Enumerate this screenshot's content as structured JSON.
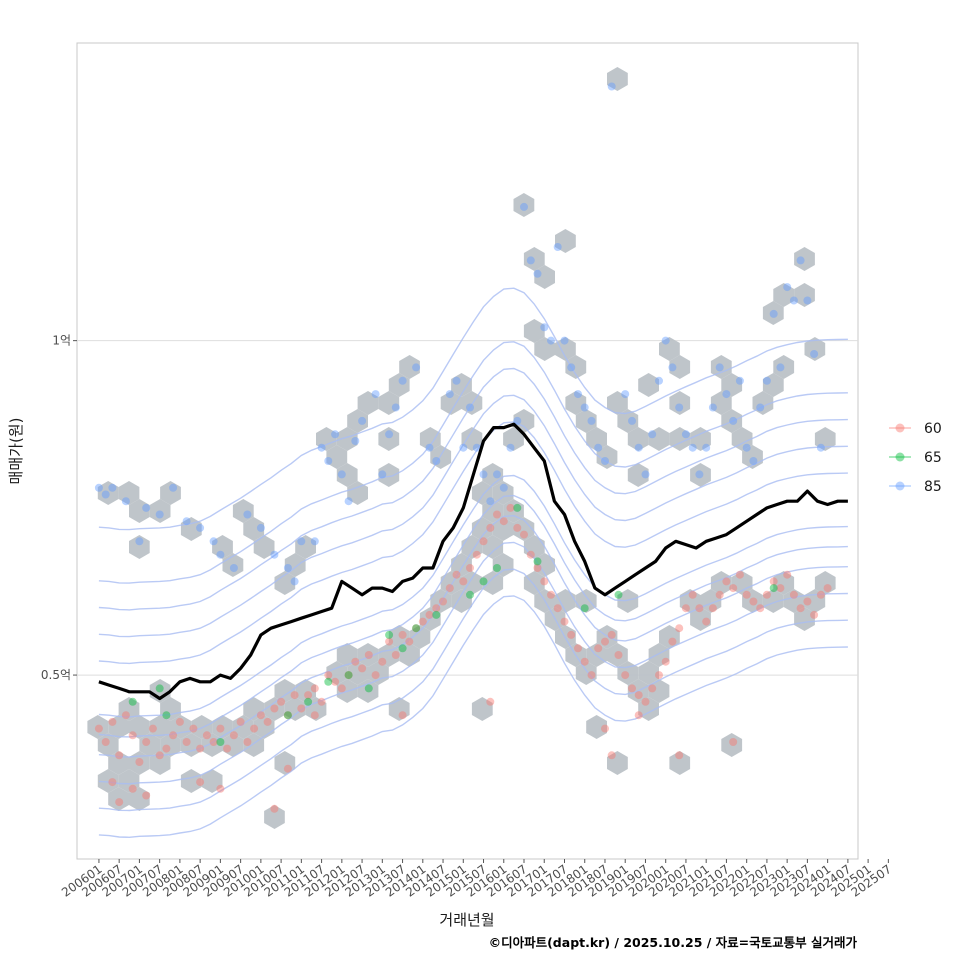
{
  "chart_data": {
    "type": "scatter",
    "title": "",
    "xlabel": "거래년월",
    "ylabel": "매매가(원)",
    "caption": "©디아파트(dapt.kr) / 2025.10.25 / 자료=국토교통부 실거래가",
    "x_unit": "months since 2006-01",
    "xlim": [
      -6.5,
      225
    ],
    "ylim": [
      22500000,
      144500000
    ],
    "x_ticks": [
      "200601",
      "200607",
      "200701",
      "200707",
      "200801",
      "200807",
      "200901",
      "200907",
      "201001",
      "201007",
      "201101",
      "201107",
      "201201",
      "201207",
      "201301",
      "201307",
      "201401",
      "201407",
      "201501",
      "201507",
      "201601",
      "201607",
      "201701",
      "201707",
      "201801",
      "201807",
      "201901",
      "201907",
      "202001",
      "202007",
      "202101",
      "202107",
      "202201",
      "202207",
      "202301",
      "202307",
      "202401",
      "202407",
      "202501",
      "202507"
    ],
    "y_ticks": [
      {
        "value": 50000000,
        "label": "0.5억"
      },
      {
        "value": 100000000,
        "label": "1억"
      }
    ],
    "grid": true,
    "legend_position": "right",
    "legend": [
      {
        "label": "60",
        "color": "#f8766d"
      },
      {
        "label": "65",
        "color": "#00ba38"
      },
      {
        "label": "85",
        "color": "#619cff"
      }
    ],
    "hexbin_color": "#bcc2c7",
    "contour_color": "#a9bdf2",
    "trend_line": {
      "name": "이동평균",
      "color": "#000000",
      "x": [
        0,
        3,
        6,
        9,
        12,
        15,
        18,
        21,
        24,
        27,
        30,
        33,
        36,
        39,
        42,
        45,
        48,
        51,
        54,
        57,
        60,
        63,
        66,
        69,
        72,
        75,
        78,
        81,
        84,
        87,
        90,
        93,
        96,
        99,
        102,
        105,
        108,
        111,
        114,
        117,
        120,
        123,
        126,
        129,
        132,
        135,
        138,
        141,
        144,
        147,
        150,
        153,
        156,
        159,
        162,
        165,
        168,
        171,
        174,
        177,
        180,
        183,
        186,
        189,
        192,
        195,
        198,
        201,
        204,
        207,
        210,
        213,
        216,
        219,
        222
      ],
      "values": [
        49,
        48.5,
        48,
        47.5,
        47.5,
        47.5,
        46.5,
        47.5,
        49,
        49.5,
        49,
        49,
        50,
        49.5,
        51,
        53,
        56,
        57,
        57.5,
        58,
        58.5,
        59,
        59.5,
        60,
        64,
        63,
        62,
        63,
        63,
        62.5,
        64,
        64.5,
        66,
        66,
        70,
        72,
        75,
        80,
        85,
        87,
        87,
        87.5,
        86,
        84,
        82,
        76,
        74,
        70,
        67,
        63,
        62,
        63,
        64,
        65,
        66,
        67,
        69,
        70,
        69.5,
        69,
        70,
        70.5,
        71,
        72,
        73,
        74,
        75,
        75.5,
        76,
        76,
        77.5,
        76,
        75.5,
        76,
        76
      ],
      "value_unit": "백만원"
    },
    "series": [
      {
        "name": "60",
        "color": "#f8766d",
        "value_unit": "백만원",
        "points": [
          [
            0,
            42
          ],
          [
            2,
            40
          ],
          [
            4,
            43
          ],
          [
            6,
            38
          ],
          [
            8,
            44
          ],
          [
            10,
            41
          ],
          [
            12,
            37
          ],
          [
            14,
            40
          ],
          [
            16,
            42
          ],
          [
            18,
            38
          ],
          [
            20,
            39
          ],
          [
            22,
            41
          ],
          [
            24,
            43
          ],
          [
            26,
            40
          ],
          [
            28,
            42
          ],
          [
            30,
            39
          ],
          [
            32,
            41
          ],
          [
            34,
            40
          ],
          [
            36,
            42
          ],
          [
            38,
            39
          ],
          [
            40,
            41
          ],
          [
            42,
            43
          ],
          [
            44,
            40
          ],
          [
            46,
            42
          ],
          [
            48,
            44
          ],
          [
            50,
            43
          ],
          [
            52,
            45
          ],
          [
            54,
            46
          ],
          [
            56,
            44
          ],
          [
            58,
            47
          ],
          [
            60,
            45
          ],
          [
            62,
            47
          ],
          [
            64,
            48
          ],
          [
            66,
            46
          ],
          [
            68,
            50
          ],
          [
            70,
            49
          ],
          [
            72,
            48
          ],
          [
            74,
            50
          ],
          [
            76,
            52
          ],
          [
            78,
            51
          ],
          [
            80,
            53
          ],
          [
            82,
            50
          ],
          [
            84,
            52
          ],
          [
            86,
            55
          ],
          [
            88,
            53
          ],
          [
            90,
            56
          ],
          [
            92,
            55
          ],
          [
            94,
            57
          ],
          [
            96,
            58
          ],
          [
            98,
            59
          ],
          [
            100,
            60
          ],
          [
            102,
            61
          ],
          [
            104,
            63
          ],
          [
            106,
            65
          ],
          [
            108,
            64
          ],
          [
            110,
            66
          ],
          [
            112,
            68
          ],
          [
            114,
            70
          ],
          [
            116,
            72
          ],
          [
            118,
            74
          ],
          [
            120,
            73
          ],
          [
            122,
            75
          ],
          [
            124,
            72
          ],
          [
            126,
            71
          ],
          [
            128,
            68
          ],
          [
            130,
            66
          ],
          [
            132,
            64
          ],
          [
            134,
            62
          ],
          [
            136,
            60
          ],
          [
            138,
            58
          ],
          [
            140,
            56
          ],
          [
            142,
            54
          ],
          [
            144,
            52
          ],
          [
            146,
            50
          ],
          [
            148,
            54
          ],
          [
            150,
            55
          ],
          [
            152,
            56
          ],
          [
            154,
            53
          ],
          [
            156,
            50
          ],
          [
            158,
            48
          ],
          [
            160,
            47
          ],
          [
            162,
            46
          ],
          [
            164,
            48
          ],
          [
            166,
            50
          ],
          [
            168,
            52
          ],
          [
            170,
            55
          ],
          [
            172,
            57
          ],
          [
            174,
            60
          ],
          [
            176,
            62
          ],
          [
            178,
            60
          ],
          [
            180,
            58
          ],
          [
            182,
            60
          ],
          [
            184,
            62
          ],
          [
            186,
            64
          ],
          [
            188,
            63
          ],
          [
            190,
            65
          ],
          [
            192,
            62
          ],
          [
            194,
            61
          ],
          [
            196,
            60
          ],
          [
            198,
            62
          ],
          [
            200,
            64
          ],
          [
            202,
            63
          ],
          [
            204,
            65
          ],
          [
            206,
            62
          ],
          [
            208,
            60
          ],
          [
            210,
            61
          ],
          [
            212,
            59
          ],
          [
            214,
            62
          ],
          [
            216,
            63
          ],
          [
            4,
            34
          ],
          [
            10,
            33
          ],
          [
            30,
            34
          ],
          [
            36,
            33
          ],
          [
            52,
            30
          ],
          [
            56,
            36
          ],
          [
            64,
            44
          ],
          [
            90,
            44
          ],
          [
            116,
            46
          ],
          [
            150,
            42
          ],
          [
            152,
            38
          ],
          [
            160,
            44
          ],
          [
            172,
            38
          ],
          [
            188,
            40
          ],
          [
            6,
            31
          ],
          [
            14,
            32
          ]
        ]
      },
      {
        "name": "65",
        "color": "#00ba38",
        "value_unit": "백만원",
        "points": [
          [
            10,
            46
          ],
          [
            18,
            48
          ],
          [
            20,
            44
          ],
          [
            36,
            40
          ],
          [
            56,
            44
          ],
          [
            62,
            46
          ],
          [
            68,
            49
          ],
          [
            74,
            50
          ],
          [
            80,
            48
          ],
          [
            86,
            56
          ],
          [
            90,
            54
          ],
          [
            94,
            57
          ],
          [
            100,
            59
          ],
          [
            110,
            62
          ],
          [
            114,
            64
          ],
          [
            118,
            66
          ],
          [
            124,
            75
          ],
          [
            130,
            67
          ],
          [
            144,
            60
          ],
          [
            154,
            62
          ],
          [
            200,
            63
          ]
        ]
      },
      {
        "name": "85",
        "color": "#619cff",
        "value_unit": "백만원",
        "points": [
          [
            0,
            78
          ],
          [
            2,
            77
          ],
          [
            4,
            78
          ],
          [
            8,
            76
          ],
          [
            12,
            70
          ],
          [
            14,
            75
          ],
          [
            18,
            74
          ],
          [
            22,
            78
          ],
          [
            26,
            73
          ],
          [
            30,
            72
          ],
          [
            34,
            70
          ],
          [
            36,
            68
          ],
          [
            40,
            66
          ],
          [
            44,
            74
          ],
          [
            48,
            72
          ],
          [
            52,
            68
          ],
          [
            56,
            66
          ],
          [
            58,
            64
          ],
          [
            60,
            70
          ],
          [
            64,
            70
          ],
          [
            66,
            84
          ],
          [
            68,
            82
          ],
          [
            70,
            86
          ],
          [
            72,
            80
          ],
          [
            74,
            76
          ],
          [
            76,
            85
          ],
          [
            78,
            88
          ],
          [
            82,
            92
          ],
          [
            84,
            80
          ],
          [
            86,
            86
          ],
          [
            88,
            90
          ],
          [
            90,
            94
          ],
          [
            94,
            96
          ],
          [
            98,
            84
          ],
          [
            100,
            82
          ],
          [
            104,
            92
          ],
          [
            106,
            94
          ],
          [
            108,
            84
          ],
          [
            110,
            90
          ],
          [
            112,
            84
          ],
          [
            114,
            80
          ],
          [
            116,
            76
          ],
          [
            118,
            80
          ],
          [
            120,
            78
          ],
          [
            122,
            84
          ],
          [
            124,
            88
          ],
          [
            126,
            120
          ],
          [
            128,
            112
          ],
          [
            130,
            110
          ],
          [
            132,
            102
          ],
          [
            134,
            100
          ],
          [
            136,
            114
          ],
          [
            138,
            100
          ],
          [
            140,
            96
          ],
          [
            142,
            92
          ],
          [
            144,
            90
          ],
          [
            146,
            88
          ],
          [
            148,
            84
          ],
          [
            150,
            82
          ],
          [
            152,
            138
          ],
          [
            156,
            92
          ],
          [
            158,
            88
          ],
          [
            160,
            84
          ],
          [
            162,
            80
          ],
          [
            164,
            86
          ],
          [
            166,
            94
          ],
          [
            168,
            100
          ],
          [
            170,
            96
          ],
          [
            172,
            90
          ],
          [
            174,
            86
          ],
          [
            176,
            84
          ],
          [
            178,
            80
          ],
          [
            180,
            84
          ],
          [
            182,
            90
          ],
          [
            184,
            96
          ],
          [
            186,
            92
          ],
          [
            188,
            88
          ],
          [
            190,
            94
          ],
          [
            192,
            84
          ],
          [
            194,
            82
          ],
          [
            196,
            90
          ],
          [
            198,
            94
          ],
          [
            200,
            104
          ],
          [
            202,
            96
          ],
          [
            204,
            108
          ],
          [
            206,
            106
          ],
          [
            208,
            112
          ],
          [
            210,
            106
          ],
          [
            212,
            98
          ],
          [
            214,
            84
          ]
        ]
      }
    ]
  }
}
